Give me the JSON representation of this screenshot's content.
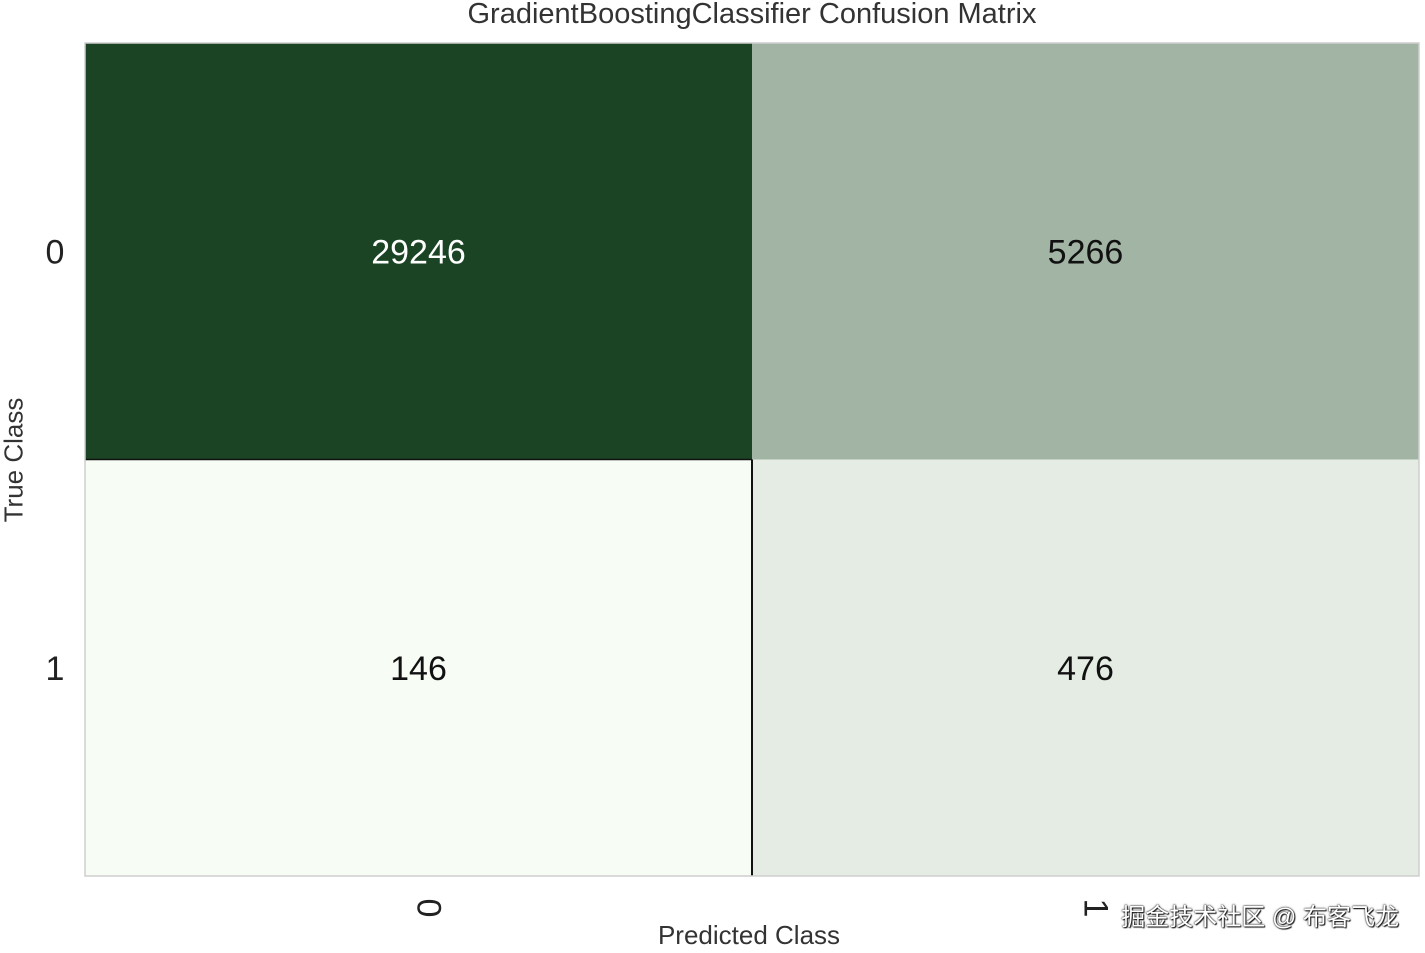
{
  "chart_data": {
    "type": "heatmap",
    "title": "GradientBoostingClassifier Confusion Matrix",
    "xlabel": "Predicted Class",
    "ylabel": "True Class",
    "x_categories": [
      "0",
      "1"
    ],
    "y_categories": [
      "0",
      "1"
    ],
    "values": [
      [
        29246,
        5266
      ],
      [
        146,
        476
      ]
    ],
    "colormap": {
      "low": "#f7fcf5",
      "high": "#1a4423",
      "text_dark": "#111111",
      "text_light": "#ffffff"
    },
    "grid": false,
    "legend": "none"
  },
  "watermark": "掘金技术社区 @ 布客飞龙"
}
